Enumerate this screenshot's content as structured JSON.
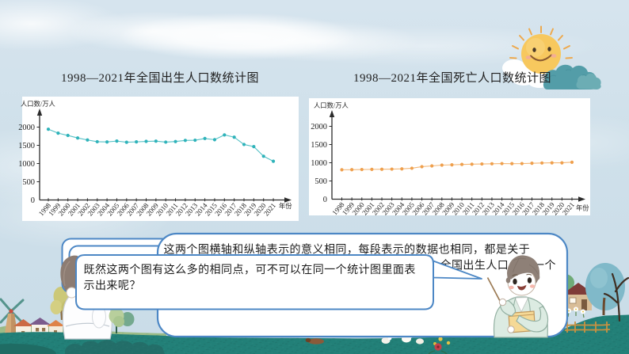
{
  "slide": {
    "type": "math-lesson-slide",
    "titles": {
      "birth_chart": "1998—2021年全国出生人口数统计图",
      "death_chart": "1998—2021年全国死亡人口数统计图"
    },
    "bubbles": {
      "back": {
        "speaker": "teacher",
        "line1": "这两个图横轴和纵轴表示的意义相同，每段表示的数据也相同，都是关于",
        "line2_fragment_a": "全国出生人口",
        "line2_fragment_b": "一个"
      },
      "front": {
        "speaker": "student",
        "line1": "既然这两个图有这么多的相同点，可不可以在同一个统计图里面表",
        "line2": "示出来呢？",
        "full_text": "既然这两个图有这么多的相同点，可不可以在同一个统计图里面表示出来呢？"
      }
    },
    "decor": {
      "sun": "smiling-sun",
      "clouds": "white-and-teal-clouds",
      "landscape": "green-hills-with-windmill-houses-and-trees",
      "characters": [
        "student-back-view",
        "teacher-with-pointer-and-book"
      ]
    },
    "colors": {
      "sky": "#cfe0ea",
      "bubble_border": "#4c87c5",
      "bubble_fill": "#ffffff",
      "birth_series": "#2fb3ba",
      "death_series": "#efa04e",
      "grass": "#2f8078",
      "text": "#1b1b1b"
    }
  },
  "chart_data": [
    {
      "type": "line",
      "title": "1998—2021年全国出生人口数统计图",
      "ylabel": "人口数/万人",
      "xlabel": "年份",
      "y_ticks": [
        0,
        500,
        1000,
        1500,
        2000
      ],
      "ylim": [
        0,
        2400
      ],
      "grid": false,
      "legend": "none",
      "categories": [
        "1998",
        "1999",
        "2000",
        "2001",
        "2002",
        "2003",
        "2004",
        "2005",
        "2006",
        "2007",
        "2008",
        "2009",
        "2010",
        "2011",
        "2012",
        "2013",
        "2014",
        "2015",
        "2016",
        "2017",
        "2018",
        "2019",
        "2020",
        "2021"
      ],
      "series": [
        {
          "name": "全国出生人口数",
          "values": [
            1942,
            1834,
            1771,
            1702,
            1647,
            1599,
            1593,
            1617,
            1585,
            1595,
            1608,
            1615,
            1588,
            1604,
            1635,
            1640,
            1687,
            1655,
            1786,
            1723,
            1523,
            1465,
            1200,
            1062
          ],
          "dot_color": "#2fb3ba",
          "line_color": "#55c1c6"
        }
      ]
    },
    {
      "type": "line",
      "title": "1998—2021年全国死亡人口数统计图",
      "ylabel": "人口数/万人",
      "xlabel": "年份",
      "y_ticks": [
        0,
        500,
        1000,
        1500,
        2000
      ],
      "ylim": [
        0,
        2400
      ],
      "grid": false,
      "legend": "none",
      "categories": [
        "1998",
        "1999",
        "2000",
        "2001",
        "2002",
        "2003",
        "2004",
        "2005",
        "2006",
        "2007",
        "2008",
        "2009",
        "2010",
        "2011",
        "2012",
        "2013",
        "2014",
        "2015",
        "2016",
        "2017",
        "2018",
        "2019",
        "2020",
        "2021"
      ],
      "series": [
        {
          "name": "全国死亡人口数",
          "values": [
            807,
            809,
            814,
            818,
            821,
            825,
            832,
            849,
            892,
            913,
            935,
            943,
            953,
            960,
            966,
            972,
            977,
            975,
            977,
            986,
            993,
            998,
            998,
            1014
          ],
          "dot_color": "#efa04e",
          "line_color": "#f3b878"
        }
      ]
    }
  ]
}
